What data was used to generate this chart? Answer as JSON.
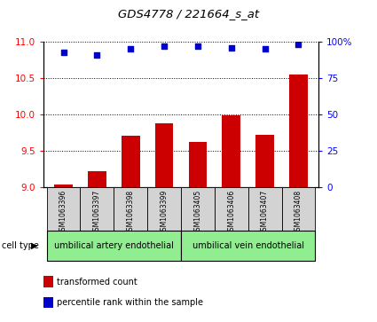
{
  "title": "GDS4778 / 221664_s_at",
  "samples": [
    "GSM1063396",
    "GSM1063397",
    "GSM1063398",
    "GSM1063399",
    "GSM1063405",
    "GSM1063406",
    "GSM1063407",
    "GSM1063408"
  ],
  "bar_values": [
    9.03,
    9.22,
    9.7,
    9.88,
    9.62,
    9.99,
    9.72,
    10.55
  ],
  "dot_values": [
    93,
    91,
    95,
    97,
    97,
    96,
    95,
    98
  ],
  "ylim_left": [
    9,
    11
  ],
  "ylim_right": [
    0,
    100
  ],
  "yticks_left": [
    9,
    9.5,
    10,
    10.5,
    11
  ],
  "yticks_right": [
    0,
    25,
    50,
    75,
    100
  ],
  "bar_color": "#cc0000",
  "dot_color": "#0000cc",
  "cell_types": [
    {
      "label": "umbilical artery endothelial",
      "start": 0,
      "end": 3
    },
    {
      "label": "umbilical vein endothelial",
      "start": 4,
      "end": 7
    }
  ],
  "cell_type_bg": "#90ee90",
  "tick_area_bg": "#d3d3d3",
  "legend_items": [
    {
      "color": "#cc0000",
      "label": "transformed count"
    },
    {
      "color": "#0000cc",
      "label": "percentile rank within the sample"
    }
  ]
}
